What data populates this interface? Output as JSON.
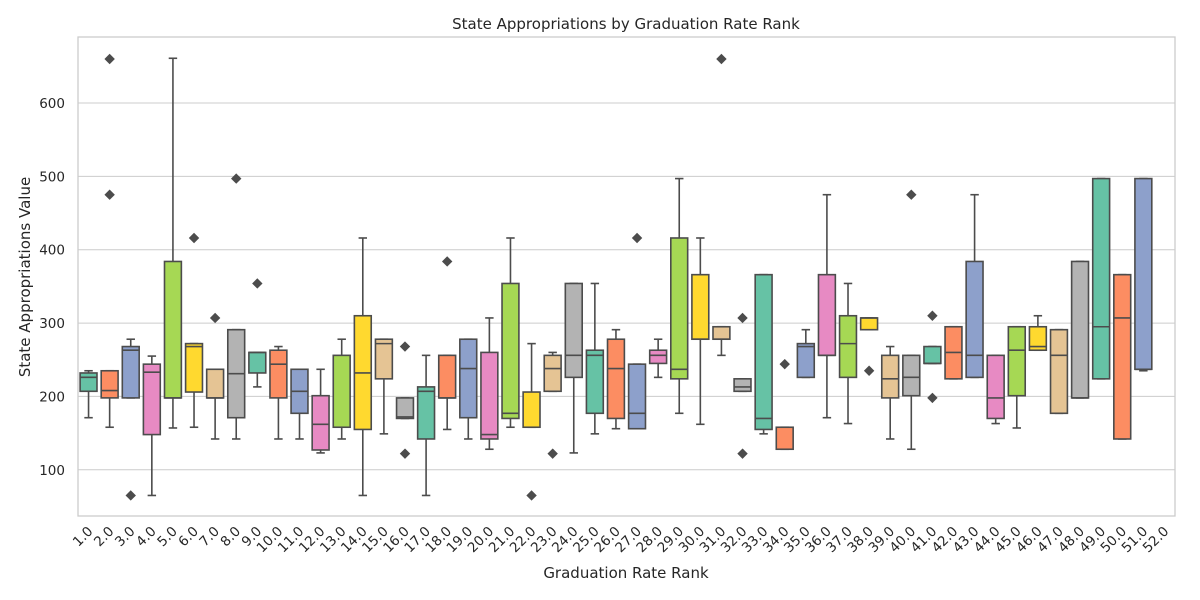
{
  "chart_data": {
    "type": "box",
    "title": "State Appropriations by Graduation Rate Rank",
    "xlabel": "Graduation Rate Rank",
    "ylabel": "State Appropriations Value",
    "ylim": [
      37,
      690
    ],
    "yticks": [
      100,
      200,
      300,
      400,
      500,
      600
    ],
    "grid": true,
    "palette": [
      "#66c2a5",
      "#fc8d62",
      "#8da0cb",
      "#e78ac3",
      "#a6d854",
      "#ffd92f",
      "#e5c494",
      "#b3b3b3"
    ],
    "categories": [
      "1.0",
      "2.0",
      "3.0",
      "4.0",
      "5.0",
      "6.0",
      "7.0",
      "8.0",
      "9.0",
      "10.0",
      "11.0",
      "12.0",
      "13.0",
      "14.0",
      "15.0",
      "16.0",
      "17.0",
      "18.0",
      "19.0",
      "20.0",
      "21.0",
      "22.0",
      "23.0",
      "24.0",
      "25.0",
      "26.0",
      "27.0",
      "28.0",
      "29.0",
      "30.0",
      "31.0",
      "32.0",
      "33.0",
      "34.0",
      "35.0",
      "36.0",
      "37.0",
      "38.0",
      "39.0",
      "40.0",
      "41.0",
      "42.0",
      "43.0",
      "44.0",
      "45.0",
      "46.0",
      "47.0",
      "48.0",
      "49.0",
      "50.0",
      "51.0",
      "52.0"
    ],
    "boxes": [
      {
        "min": 171,
        "q1": 207,
        "median": 226,
        "q3": 232,
        "max": 235,
        "outliers": []
      },
      {
        "min": 158,
        "q1": 198,
        "median": 208,
        "q3": 235,
        "max": 235,
        "outliers": [
          475,
          660
        ]
      },
      {
        "min": 198,
        "q1": 198,
        "median": 263,
        "q3": 268,
        "max": 278,
        "outliers": [
          65
        ]
      },
      {
        "min": 65,
        "q1": 148,
        "median": 233,
        "q3": 244,
        "max": 255,
        "outliers": []
      },
      {
        "min": 157,
        "q1": 198,
        "median": 198,
        "q3": 384,
        "max": 661,
        "outliers": []
      },
      {
        "min": 158,
        "q1": 206,
        "median": 268,
        "q3": 272,
        "max": 272,
        "outliers": [
          416
        ]
      },
      {
        "min": 142,
        "q1": 198,
        "median": 198,
        "q3": 237,
        "max": 237,
        "outliers": [
          307
        ]
      },
      {
        "min": 142,
        "q1": 171,
        "median": 231,
        "q3": 291,
        "max": 291,
        "outliers": [
          497
        ]
      },
      {
        "min": 213,
        "q1": 232,
        "median": 260,
        "q3": 260,
        "max": 260,
        "outliers": [
          354
        ]
      },
      {
        "min": 142,
        "q1": 198,
        "median": 244,
        "q3": 263,
        "max": 268,
        "outliers": []
      },
      {
        "min": 142,
        "q1": 177,
        "median": 207,
        "q3": 237,
        "max": 237,
        "outliers": []
      },
      {
        "min": 123,
        "q1": 127,
        "median": 162,
        "q3": 201,
        "max": 237,
        "outliers": []
      },
      {
        "min": 142,
        "q1": 158,
        "median": 158,
        "q3": 256,
        "max": 278,
        "outliers": []
      },
      {
        "min": 65,
        "q1": 155,
        "median": 232,
        "q3": 310,
        "max": 416,
        "outliers": []
      },
      {
        "min": 149,
        "q1": 224,
        "median": 272,
        "q3": 278,
        "max": 278,
        "outliers": []
      },
      {
        "min": 170,
        "q1": 170,
        "median": 172,
        "q3": 198,
        "max": 198,
        "outliers": [
          268,
          122
        ]
      },
      {
        "min": 65,
        "q1": 142,
        "median": 207,
        "q3": 213,
        "max": 256,
        "outliers": []
      },
      {
        "min": 155,
        "q1": 198,
        "median": 198,
        "q3": 256,
        "max": 256,
        "outliers": [
          384
        ]
      },
      {
        "min": 142,
        "q1": 171,
        "median": 238,
        "q3": 278,
        "max": 278,
        "outliers": []
      },
      {
        "min": 128,
        "q1": 142,
        "median": 148,
        "q3": 260,
        "max": 307,
        "outliers": []
      },
      {
        "min": 158,
        "q1": 170,
        "median": 177,
        "q3": 354,
        "max": 416,
        "outliers": []
      },
      {
        "min": 158,
        "q1": 158,
        "median": 158,
        "q3": 206,
        "max": 272,
        "outliers": [
          65
        ]
      },
      {
        "min": 207,
        "q1": 207,
        "median": 238,
        "q3": 256,
        "max": 260,
        "outliers": [
          122
        ]
      },
      {
        "min": 123,
        "q1": 226,
        "median": 256,
        "q3": 354,
        "max": 354,
        "outliers": []
      },
      {
        "min": 149,
        "q1": 177,
        "median": 256,
        "q3": 263,
        "max": 354,
        "outliers": []
      },
      {
        "min": 156,
        "q1": 170,
        "median": 238,
        "q3": 278,
        "max": 291,
        "outliers": []
      },
      {
        "min": 156,
        "q1": 156,
        "median": 177,
        "q3": 244,
        "max": 244,
        "outliers": [
          416
        ]
      },
      {
        "min": 226,
        "q1": 245,
        "median": 256,
        "q3": 263,
        "max": 278,
        "outliers": []
      },
      {
        "min": 177,
        "q1": 224,
        "median": 237,
        "q3": 416,
        "max": 497,
        "outliers": []
      },
      {
        "min": 162,
        "q1": 278,
        "median": 278,
        "q3": 366,
        "max": 416,
        "outliers": []
      },
      {
        "min": 256,
        "q1": 278,
        "median": 278,
        "q3": 295,
        "max": 295,
        "outliers": [
          660
        ]
      },
      {
        "min": 207,
        "q1": 207,
        "median": 213,
        "q3": 224,
        "max": 224,
        "outliers": [
          307,
          122
        ]
      },
      {
        "min": 149,
        "q1": 155,
        "median": 170,
        "q3": 366,
        "max": 366,
        "outliers": []
      },
      {
        "min": 128,
        "q1": 128,
        "median": 128,
        "q3": 158,
        "max": 158,
        "outliers": [
          244
        ]
      },
      {
        "min": 226,
        "q1": 226,
        "median": 268,
        "q3": 272,
        "max": 291,
        "outliers": []
      },
      {
        "min": 171,
        "q1": 256,
        "median": 256,
        "q3": 366,
        "max": 475,
        "outliers": []
      },
      {
        "min": 163,
        "q1": 226,
        "median": 272,
        "q3": 310,
        "max": 354,
        "outliers": []
      },
      {
        "min": 291,
        "q1": 291,
        "median": 307,
        "q3": 307,
        "max": 307,
        "outliers": [
          235
        ]
      },
      {
        "min": 142,
        "q1": 198,
        "median": 224,
        "q3": 256,
        "max": 268,
        "outliers": []
      },
      {
        "min": 128,
        "q1": 201,
        "median": 226,
        "q3": 256,
        "max": 256,
        "outliers": [
          475
        ]
      },
      {
        "min": 245,
        "q1": 245,
        "median": 245,
        "q3": 268,
        "max": 268,
        "outliers": [
          310,
          198
        ]
      },
      {
        "min": 224,
        "q1": 224,
        "median": 260,
        "q3": 295,
        "max": 295,
        "outliers": []
      },
      {
        "min": 226,
        "q1": 226,
        "median": 256,
        "q3": 384,
        "max": 475,
        "outliers": []
      },
      {
        "min": 163,
        "q1": 170,
        "median": 198,
        "q3": 256,
        "max": 256,
        "outliers": []
      },
      {
        "min": 157,
        "q1": 201,
        "median": 263,
        "q3": 295,
        "max": 295,
        "outliers": []
      },
      {
        "min": 263,
        "q1": 263,
        "median": 268,
        "q3": 295,
        "max": 310,
        "outliers": []
      },
      {
        "min": 177,
        "q1": 177,
        "median": 256,
        "q3": 291,
        "max": 291,
        "outliers": []
      },
      {
        "min": 198,
        "q1": 198,
        "median": 198,
        "q3": 384,
        "max": 384,
        "outliers": []
      },
      {
        "min": 224,
        "q1": 224,
        "median": 295,
        "q3": 497,
        "max": 497,
        "outliers": []
      },
      {
        "min": 142,
        "q1": 142,
        "median": 307,
        "q3": 366,
        "max": 366,
        "outliers": []
      },
      {
        "min": 235,
        "q1": 237,
        "median": 237,
        "q3": 497,
        "max": 497,
        "outliers": []
      },
      null
    ]
  }
}
